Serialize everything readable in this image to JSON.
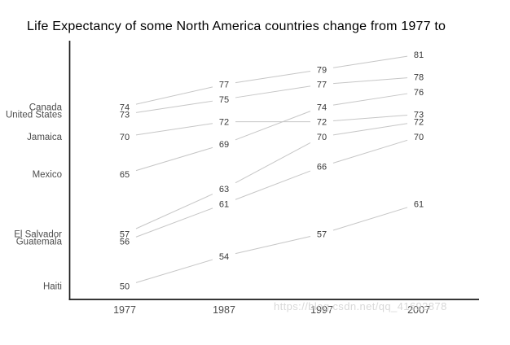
{
  "watermark": {
    "text": "https://blog.csdn.net/qq_41692878"
  },
  "chart_data": {
    "type": "line",
    "subtype": "slopegraph",
    "title": "Life Expectancy of some North America countries change from 1977 to",
    "xlabel": "",
    "ylabel": "",
    "x_tick_labels": [
      "1977",
      "1987",
      "1997",
      "2007"
    ],
    "x_values": [
      1977,
      1987,
      1997,
      2007
    ],
    "ylim": [
      48,
      83
    ],
    "grid": false,
    "legend_position": "left-direct-labels",
    "value_labels_shown": true,
    "series": [
      {
        "name": "Canada",
        "values": [
          74,
          77,
          79,
          81
        ]
      },
      {
        "name": "United States",
        "values": [
          73,
          75,
          77,
          78
        ]
      },
      {
        "name": "Jamaica",
        "values": [
          70,
          72,
          72,
          73
        ]
      },
      {
        "name": "Mexico",
        "values": [
          65,
          69,
          74,
          76
        ]
      },
      {
        "name": "El Salvador",
        "values": [
          57,
          63,
          70,
          72
        ]
      },
      {
        "name": "Guatemala",
        "values": [
          56,
          61,
          66,
          70
        ]
      },
      {
        "name": "Haiti",
        "values": [
          50,
          54,
          57,
          61
        ]
      }
    ],
    "colors": {
      "line": "#c6c6c6",
      "value_label": "#383838",
      "country_label": "#4d4d4d",
      "tick_label": "#4d4d4d",
      "axis": "#1a1a1a",
      "title": "#000000",
      "watermark": "#cfcfcf",
      "background": "#ffffff"
    }
  }
}
